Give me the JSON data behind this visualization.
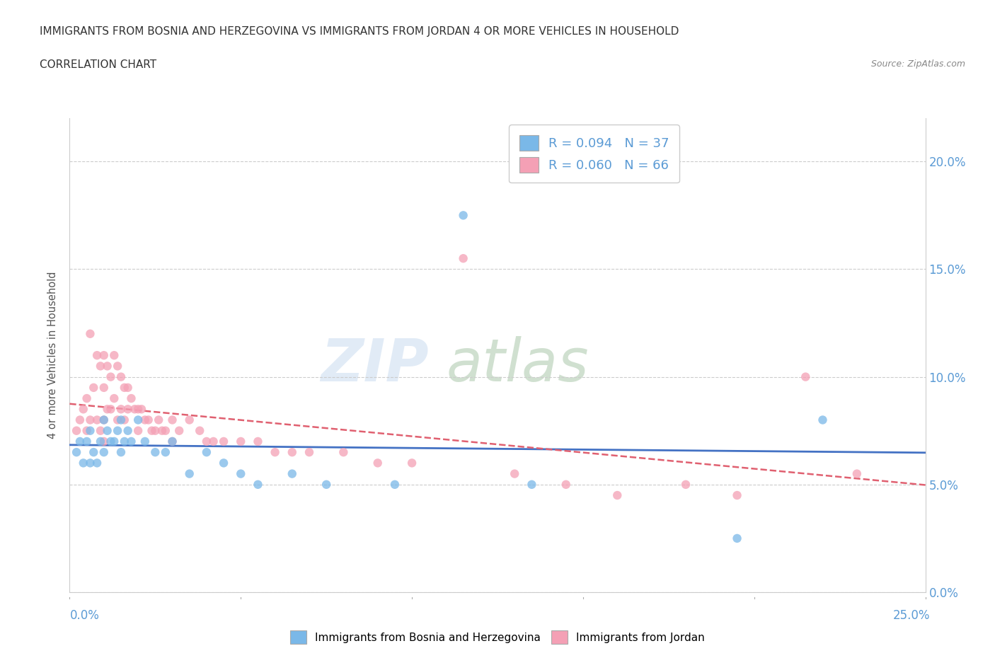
{
  "title_line1": "IMMIGRANTS FROM BOSNIA AND HERZEGOVINA VS IMMIGRANTS FROM JORDAN 4 OR MORE VEHICLES IN HOUSEHOLD",
  "title_line2": "CORRELATION CHART",
  "source": "Source: ZipAtlas.com",
  "ylabel": "4 or more Vehicles in Household",
  "color_bosnia": "#7ab8e8",
  "color_jordan": "#f4a0b5",
  "color_line_bosnia": "#4472c4",
  "color_line_jordan": "#e06070",
  "xlim": [
    0.0,
    25.0
  ],
  "ylim": [
    0.0,
    22.0
  ],
  "ytick_vals": [
    0,
    5,
    10,
    15,
    20
  ],
  "ytick_labels": [
    "0.0%",
    "5.0%",
    "10.0%",
    "15.0%",
    "20.0%"
  ],
  "bosnia_x": [
    0.2,
    0.3,
    0.4,
    0.5,
    0.6,
    0.6,
    0.7,
    0.8,
    0.9,
    1.0,
    1.0,
    1.1,
    1.2,
    1.3,
    1.4,
    1.5,
    1.5,
    1.6,
    1.7,
    1.8,
    2.0,
    2.2,
    2.5,
    2.8,
    3.0,
    3.5,
    4.0,
    4.5,
    5.0,
    5.5,
    6.5,
    7.5,
    9.5,
    11.5,
    13.5,
    19.5,
    22.0
  ],
  "bosnia_y": [
    6.5,
    7.0,
    6.0,
    7.0,
    7.5,
    6.0,
    6.5,
    6.0,
    7.0,
    8.0,
    6.5,
    7.5,
    7.0,
    7.0,
    7.5,
    8.0,
    6.5,
    7.0,
    7.5,
    7.0,
    8.0,
    7.0,
    6.5,
    6.5,
    7.0,
    5.5,
    6.5,
    6.0,
    5.5,
    5.0,
    5.5,
    5.0,
    5.0,
    17.5,
    5.0,
    2.5,
    8.0
  ],
  "jordan_x": [
    0.2,
    0.3,
    0.4,
    0.5,
    0.5,
    0.6,
    0.6,
    0.7,
    0.8,
    0.8,
    0.9,
    0.9,
    1.0,
    1.0,
    1.0,
    1.0,
    1.1,
    1.1,
    1.2,
    1.2,
    1.3,
    1.3,
    1.4,
    1.4,
    1.5,
    1.5,
    1.6,
    1.6,
    1.7,
    1.7,
    1.8,
    1.9,
    2.0,
    2.0,
    2.1,
    2.2,
    2.3,
    2.4,
    2.5,
    2.6,
    2.7,
    2.8,
    3.0,
    3.0,
    3.2,
    3.5,
    3.8,
    4.0,
    4.2,
    4.5,
    5.0,
    5.5,
    6.0,
    6.5,
    7.0,
    8.0,
    9.0,
    10.0,
    11.5,
    13.0,
    14.5,
    16.0,
    18.0,
    19.5,
    21.5,
    23.0
  ],
  "jordan_y": [
    7.5,
    8.0,
    8.5,
    9.0,
    7.5,
    12.0,
    8.0,
    9.5,
    11.0,
    8.0,
    10.5,
    7.5,
    11.0,
    9.5,
    8.0,
    7.0,
    10.5,
    8.5,
    10.0,
    8.5,
    11.0,
    9.0,
    10.5,
    8.0,
    10.0,
    8.5,
    9.5,
    8.0,
    9.5,
    8.5,
    9.0,
    8.5,
    8.5,
    7.5,
    8.5,
    8.0,
    8.0,
    7.5,
    7.5,
    8.0,
    7.5,
    7.5,
    8.0,
    7.0,
    7.5,
    8.0,
    7.5,
    7.0,
    7.0,
    7.0,
    7.0,
    7.0,
    6.5,
    6.5,
    6.5,
    6.5,
    6.0,
    6.0,
    15.5,
    5.5,
    5.0,
    4.5,
    5.0,
    4.5,
    10.0,
    5.5
  ]
}
